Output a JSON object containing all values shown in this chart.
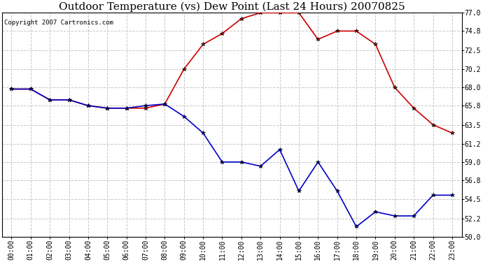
{
  "title": "Outdoor Temperature (vs) Dew Point (Last 24 Hours) 20070825",
  "copyright": "Copyright 2007 Cartronics.com",
  "x_labels": [
    "00:00",
    "01:00",
    "02:00",
    "03:00",
    "04:00",
    "05:00",
    "06:00",
    "07:00",
    "08:00",
    "09:00",
    "10:00",
    "11:00",
    "12:00",
    "13:00",
    "14:00",
    "15:00",
    "16:00",
    "17:00",
    "18:00",
    "19:00",
    "20:00",
    "21:00",
    "22:00",
    "23:00"
  ],
  "temp_values": [
    67.8,
    67.8,
    66.5,
    66.5,
    65.8,
    65.5,
    65.5,
    65.5,
    66.0,
    70.2,
    73.2,
    74.5,
    76.3,
    77.0,
    77.0,
    77.0,
    73.8,
    74.8,
    74.8,
    73.2,
    68.0,
    65.5,
    63.5,
    62.5
  ],
  "dew_values": [
    67.8,
    67.8,
    66.5,
    66.5,
    65.8,
    65.5,
    65.5,
    65.8,
    66.0,
    64.5,
    62.5,
    59.0,
    59.0,
    58.5,
    60.5,
    55.5,
    59.0,
    55.5,
    51.2,
    53.0,
    52.5,
    52.5,
    55.0,
    55.0
  ],
  "temp_color": "#cc0000",
  "dew_color": "#0000cc",
  "ylim_min": 50.0,
  "ylim_max": 77.0,
  "yticks": [
    50.0,
    52.2,
    54.5,
    56.8,
    59.0,
    61.2,
    63.5,
    65.8,
    68.0,
    70.2,
    72.5,
    74.8,
    77.0
  ],
  "bg_color": "#ffffff",
  "plot_bg_color": "#ffffff",
  "grid_color": "#c8c8c8",
  "title_fontsize": 11,
  "copyright_fontsize": 6.5,
  "tick_fontsize": 7,
  "marker": "*",
  "markersize": 4
}
